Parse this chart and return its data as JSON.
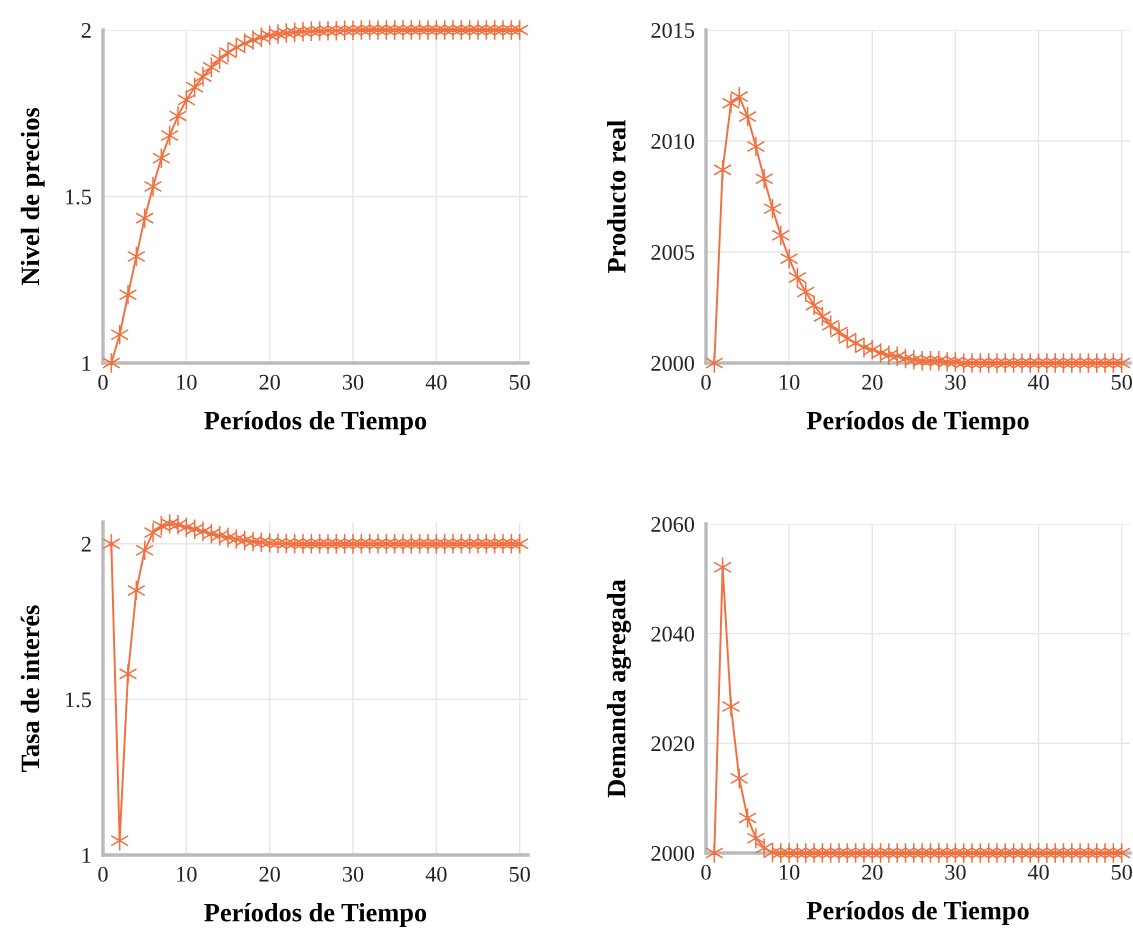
{
  "chart_data": [
    {
      "type": "line",
      "xlabel": "Períodos de Tiempo",
      "ylabel": "Nivel de precios",
      "x": [
        1,
        2,
        3,
        4,
        5,
        6,
        7,
        8,
        9,
        10,
        11,
        12,
        13,
        14,
        15,
        16,
        17,
        18,
        19,
        20,
        21,
        22,
        23,
        24,
        25,
        26,
        27,
        28,
        29,
        30,
        31,
        32,
        33,
        34,
        35,
        36,
        37,
        38,
        39,
        40,
        41,
        42,
        43,
        44,
        45,
        46,
        47,
        48,
        49,
        50
      ],
      "series": [
        {
          "color": "#f07040",
          "values": [
            1.0,
            1.085,
            1.205,
            1.32,
            1.435,
            1.53,
            1.615,
            1.683,
            1.742,
            1.79,
            1.828,
            1.86,
            1.888,
            1.912,
            1.932,
            1.948,
            1.96,
            1.97,
            1.978,
            1.984,
            1.988,
            1.991,
            1.993,
            1.995,
            1.996,
            1.997,
            1.998,
            1.998,
            1.999,
            1.999,
            2.0,
            2.0,
            2.0,
            2.0,
            2.0,
            2.0,
            2.0,
            2.0,
            2.0,
            2.0,
            2.0,
            2.0,
            2.0,
            2.0,
            2.0,
            2.0,
            2.0,
            2.0,
            2.0,
            2.0
          ]
        }
      ],
      "xlim": [
        0,
        51
      ],
      "xticks": [
        0,
        10,
        20,
        30,
        40,
        50
      ],
      "ylim": [
        1,
        2
      ],
      "yticks": [
        1,
        1.5,
        2
      ],
      "grid": true,
      "marker": "cross",
      "line_style": "solid"
    },
    {
      "type": "line",
      "xlabel": "Períodos de Tiempo",
      "ylabel": "Producto real",
      "x": [
        1,
        2,
        3,
        4,
        5,
        6,
        7,
        8,
        9,
        10,
        11,
        12,
        13,
        14,
        15,
        16,
        17,
        18,
        19,
        20,
        21,
        22,
        23,
        24,
        25,
        26,
        27,
        28,
        29,
        30,
        31,
        32,
        33,
        34,
        35,
        36,
        37,
        38,
        39,
        40,
        41,
        42,
        43,
        44,
        45,
        46,
        47,
        48,
        49,
        50
      ],
      "series": [
        {
          "color": "#f07040",
          "values": [
            2000.0,
            2008.7,
            2011.7,
            2012.0,
            2011.1,
            2009.75,
            2008.3,
            2006.95,
            2005.75,
            2004.7,
            2003.85,
            2003.2,
            2002.6,
            2002.1,
            2001.7,
            2001.4,
            2001.1,
            2000.9,
            2000.7,
            2000.6,
            2000.45,
            2000.35,
            2000.3,
            2000.2,
            2000.15,
            2000.1,
            2000.1,
            2000.1,
            2000.05,
            2000.05,
            2000.0,
            2000.0,
            2000.0,
            2000.0,
            2000.0,
            2000.0,
            2000.0,
            2000.0,
            2000.0,
            2000.0,
            2000.0,
            2000.0,
            2000.0,
            2000.0,
            2000.0,
            2000.0,
            2000.0,
            2000.0,
            2000.0,
            2000.0
          ]
        }
      ],
      "xlim": [
        0,
        51
      ],
      "xticks": [
        0,
        10,
        20,
        30,
        40,
        50
      ],
      "ylim": [
        2000,
        2015
      ],
      "yticks": [
        2000,
        2005,
        2010,
        2015
      ],
      "grid": true,
      "marker": "cross",
      "line_style": "solid"
    },
    {
      "type": "line",
      "xlabel": "Períodos de Tiempo",
      "ylabel": "Tasa de interés",
      "x": [
        1,
        2,
        3,
        4,
        5,
        6,
        7,
        8,
        9,
        10,
        11,
        12,
        13,
        14,
        15,
        16,
        17,
        18,
        19,
        20,
        21,
        22,
        23,
        24,
        25,
        26,
        27,
        28,
        29,
        30,
        31,
        32,
        33,
        34,
        35,
        36,
        37,
        38,
        39,
        40,
        41,
        42,
        43,
        44,
        45,
        46,
        47,
        48,
        49,
        50
      ],
      "series": [
        {
          "color": "#f07040",
          "values": [
            2.0,
            1.046,
            1.582,
            1.85,
            1.979,
            2.036,
            2.058,
            2.064,
            2.061,
            2.053,
            2.047,
            2.04,
            2.032,
            2.026,
            2.02,
            2.015,
            2.011,
            2.007,
            2.005,
            2.003,
            2.002,
            2.001,
            2.0,
            2.0,
            2.0,
            2.0,
            2.0,
            2.0,
            2.0,
            2.0,
            2.0,
            2.0,
            2.0,
            2.0,
            2.0,
            2.0,
            2.0,
            2.0,
            2.0,
            2.0,
            2.0,
            2.0,
            2.0,
            2.0,
            2.0,
            2.0,
            2.0,
            2.0,
            2.0,
            2.0
          ]
        }
      ],
      "xlim": [
        0,
        51
      ],
      "xticks": [
        0,
        10,
        20,
        30,
        40,
        50
      ],
      "ylim": [
        1,
        2.07
      ],
      "yticks": [
        1,
        1.5,
        2
      ],
      "grid": true,
      "marker": "cross",
      "line_style": "solid"
    },
    {
      "type": "line",
      "xlabel": "Períodos de Tiempo",
      "ylabel": "Demanda agregada",
      "x": [
        1,
        2,
        3,
        4,
        5,
        6,
        7,
        8,
        9,
        10,
        11,
        12,
        13,
        14,
        15,
        16,
        17,
        18,
        19,
        20,
        21,
        22,
        23,
        24,
        25,
        26,
        27,
        28,
        29,
        30,
        31,
        32,
        33,
        34,
        35,
        36,
        37,
        38,
        39,
        40,
        41,
        42,
        43,
        44,
        45,
        46,
        47,
        48,
        49,
        50
      ],
      "series": [
        {
          "color": "#f07040",
          "values": [
            2000.0,
            2052.1,
            2026.7,
            2013.6,
            2006.4,
            2002.7,
            2000.9,
            2000.1,
            2000.0,
            2000.0,
            2000.0,
            2000.0,
            2000.0,
            2000.0,
            2000.0,
            2000.0,
            2000.0,
            2000.0,
            2000.0,
            2000.0,
            2000.0,
            2000.0,
            2000.0,
            2000.0,
            2000.0,
            2000.0,
            2000.0,
            2000.0,
            2000.0,
            2000.0,
            2000.0,
            2000.0,
            2000.0,
            2000.0,
            2000.0,
            2000.0,
            2000.0,
            2000.0,
            2000.0,
            2000.0,
            2000.0,
            2000.0,
            2000.0,
            2000.0,
            2000.0,
            2000.0,
            2000.0,
            2000.0,
            2000.0,
            2000.0
          ]
        }
      ],
      "xlim": [
        0,
        51
      ],
      "xticks": [
        0,
        10,
        20,
        30,
        40,
        50
      ],
      "ylim": [
        2000,
        2060
      ],
      "yticks": [
        2000,
        2020,
        2040,
        2060
      ],
      "grid": true,
      "marker": "cross",
      "line_style": "solid"
    }
  ]
}
